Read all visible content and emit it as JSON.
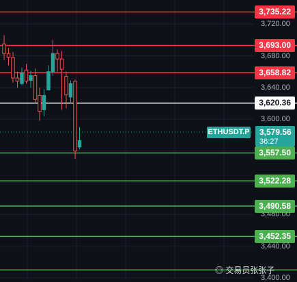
{
  "symbol": "ETHUSDT.P",
  "current_price": "3,579.56",
  "countdown": "36:27",
  "watermark": "交易员张张子",
  "axis_ticks": [
    "3,720.00",
    "3,680.00",
    "3,640.00",
    "3,600.00",
    "3,480.00",
    "3,440.00",
    "3,400.00"
  ],
  "colors": {
    "background": "#0f1119",
    "up": "#26a69a",
    "down": "#ef5350",
    "resistance": "#f23645",
    "support": "#4caf50",
    "pivot": "#ffffff"
  },
  "chart_data": {
    "type": "candlestick",
    "y_axis": {
      "min": 3400,
      "max": 3740,
      "side": "right"
    },
    "grid": true,
    "price_levels": [
      {
        "value": 3735.22,
        "label": "3,735.22",
        "kind": "resistance"
      },
      {
        "value": 3693.0,
        "label": "3,693.00",
        "kind": "resistance"
      },
      {
        "value": 3658.82,
        "label": "3,658.82",
        "kind": "resistance"
      },
      {
        "value": 3620.36,
        "label": "3,620.36",
        "kind": "pivot"
      },
      {
        "value": 3557.5,
        "label": "3,557.50",
        "kind": "support"
      },
      {
        "value": 3522.28,
        "label": "3,522.28",
        "kind": "support"
      },
      {
        "value": 3490.58,
        "label": "3,490.58",
        "kind": "support"
      },
      {
        "value": 3452.35,
        "label": "3,452.35",
        "kind": "support"
      },
      {
        "value": 3410.0,
        "label": "",
        "kind": "support"
      }
    ],
    "candles": [
      {
        "o": 3695,
        "h": 3706,
        "c": 3683,
        "l": 3675
      },
      {
        "o": 3683,
        "h": 3690,
        "c": 3678,
        "l": 3668
      },
      {
        "o": 3678,
        "h": 3685,
        "c": 3652,
        "l": 3646
      },
      {
        "o": 3652,
        "h": 3660,
        "c": 3648,
        "l": 3640
      },
      {
        "o": 3645,
        "h": 3665,
        "c": 3658,
        "l": 3643
      },
      {
        "o": 3662,
        "h": 3670,
        "c": 3648,
        "l": 3645
      },
      {
        "o": 3649,
        "h": 3661,
        "c": 3655,
        "l": 3640
      },
      {
        "o": 3655,
        "h": 3664,
        "c": 3625,
        "l": 3620
      },
      {
        "o": 3630,
        "h": 3640,
        "c": 3610,
        "l": 3598
      },
      {
        "o": 3612,
        "h": 3638,
        "c": 3630,
        "l": 3604
      },
      {
        "o": 3637,
        "h": 3668,
        "c": 3660,
        "l": 3637
      },
      {
        "o": 3660,
        "h": 3700,
        "c": 3683,
        "l": 3655
      },
      {
        "o": 3683,
        "h": 3688,
        "c": 3676,
        "l": 3660
      },
      {
        "o": 3676,
        "h": 3686,
        "c": 3663,
        "l": 3612
      },
      {
        "o": 3654,
        "h": 3660,
        "c": 3631,
        "l": 3614
      },
      {
        "o": 3628,
        "h": 3649,
        "c": 3645,
        "l": 3620
      },
      {
        "o": 3648,
        "h": 3650,
        "c": 3560,
        "l": 3550
      },
      {
        "o": 3565,
        "h": 3590,
        "c": 3573,
        "l": 3562
      }
    ]
  }
}
